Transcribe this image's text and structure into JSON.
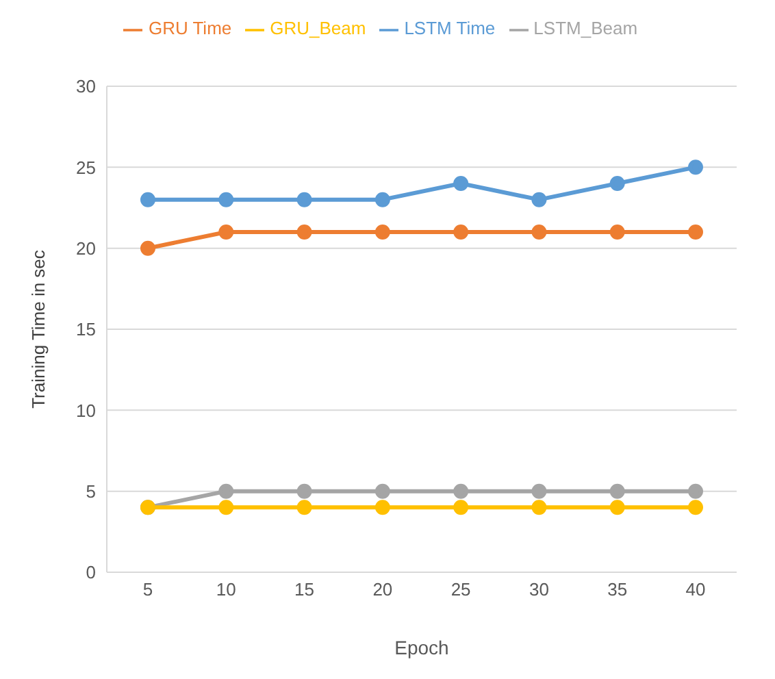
{
  "chart_data": {
    "type": "line",
    "xlabel": "Epoch",
    "ylabel": "Training Time in sec",
    "categories": [
      "5",
      "10",
      "15",
      "20",
      "25",
      "30",
      "35",
      "40"
    ],
    "series": [
      {
        "name": "LSTM Time",
        "color": "#5b9bd5",
        "values": [
          23,
          23,
          23,
          23,
          24,
          23,
          24,
          25
        ]
      },
      {
        "name": "GRU Time",
        "color": "#ed7d31",
        "values": [
          20,
          21,
          21,
          21,
          21,
          21,
          21,
          21
        ]
      },
      {
        "name": "LSTM_Beam",
        "color": "#a5a5a5",
        "values": [
          4,
          5,
          5,
          5,
          5,
          5,
          5,
          5
        ]
      },
      {
        "name": "GRU_Beam",
        "color": "#ffc000",
        "values": [
          4,
          4,
          4,
          4,
          4,
          4,
          4,
          4
        ]
      }
    ],
    "ylim": [
      0,
      30
    ],
    "yticks": [
      0,
      5,
      10,
      15,
      20,
      25,
      30
    ],
    "grid": "y",
    "legend": "top",
    "marker": "circle",
    "line_style": "solid"
  }
}
